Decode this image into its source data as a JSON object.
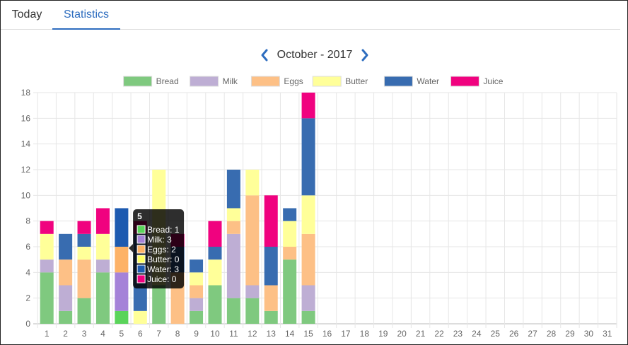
{
  "tabs": [
    {
      "label": "Today",
      "active": false
    },
    {
      "label": "Statistics",
      "active": true
    }
  ],
  "month_nav": {
    "title": "October - 2017",
    "prev_icon": "chevron-left-icon",
    "next_icon": "chevron-right-icon",
    "accent": "#2e6dbf"
  },
  "chart_data": {
    "type": "bar",
    "stacked": true,
    "categories": [
      "1",
      "2",
      "3",
      "4",
      "5",
      "6",
      "7",
      "8",
      "9",
      "10",
      "11",
      "12",
      "13",
      "14",
      "15",
      "16",
      "17",
      "18",
      "19",
      "20",
      "21",
      "22",
      "23",
      "24",
      "25",
      "26",
      "27",
      "28",
      "29",
      "30",
      "31"
    ],
    "ylim": [
      0,
      18
    ],
    "yticks": [
      0,
      2,
      4,
      6,
      8,
      10,
      12,
      14,
      16,
      18
    ],
    "grid": true,
    "legend_position": "top",
    "series": [
      {
        "name": "Bread",
        "color": "#7fc97f",
        "values": [
          4,
          1,
          2,
          4,
          1,
          0,
          3,
          0,
          1,
          3,
          2,
          2,
          1,
          5,
          1,
          0,
          0,
          0,
          0,
          0,
          0,
          0,
          0,
          0,
          0,
          0,
          0,
          0,
          0,
          0,
          0
        ]
      },
      {
        "name": "Milk",
        "color": "#beaed4",
        "values": [
          1,
          2,
          0,
          1,
          3,
          0,
          0,
          0,
          1,
          0,
          5,
          1,
          0,
          0,
          2,
          0,
          0,
          0,
          0,
          0,
          0,
          0,
          0,
          0,
          0,
          0,
          0,
          0,
          0,
          0,
          0
        ]
      },
      {
        "name": "Eggs",
        "color": "#fdc086",
        "values": [
          0,
          2,
          3,
          0,
          2,
          0,
          0,
          4,
          1,
          0,
          1,
          7,
          2,
          1,
          4,
          0,
          0,
          0,
          0,
          0,
          0,
          0,
          0,
          0,
          0,
          0,
          0,
          0,
          0,
          0,
          0
        ]
      },
      {
        "name": "Butter",
        "color": "#ffff99",
        "values": [
          2,
          0,
          1,
          2,
          0,
          1,
          9,
          0,
          1,
          2,
          1,
          2,
          0,
          2,
          3,
          0,
          0,
          0,
          0,
          0,
          0,
          0,
          0,
          0,
          0,
          0,
          0,
          0,
          0,
          0,
          0
        ]
      },
      {
        "name": "Water",
        "color": "#386cb0",
        "values": [
          0,
          2,
          1,
          0,
          3,
          6,
          0,
          2,
          1,
          1,
          3,
          0,
          3,
          1,
          6,
          0,
          0,
          0,
          0,
          0,
          0,
          0,
          0,
          0,
          0,
          0,
          0,
          0,
          0,
          0,
          0
        ]
      },
      {
        "name": "Juice",
        "color": "#f0027f",
        "values": [
          1,
          0,
          1,
          2,
          0,
          1,
          0,
          1,
          0,
          2,
          0,
          0,
          4,
          0,
          2,
          0,
          0,
          0,
          0,
          0,
          0,
          0,
          0,
          0,
          0,
          0,
          0,
          0,
          0,
          0,
          0
        ]
      }
    ],
    "hover_index": 4,
    "hover_colors": [
      "#5ad45a",
      "#a582d8",
      "#fdb266",
      "#ffff66",
      "#1d5ab0",
      "#f00080"
    ],
    "tooltip": {
      "title": "5",
      "items": [
        "Bread: 1",
        "Milk: 3",
        "Eggs: 2",
        "Butter: 0",
        "Water: 3",
        "Juice: 0"
      ]
    }
  }
}
